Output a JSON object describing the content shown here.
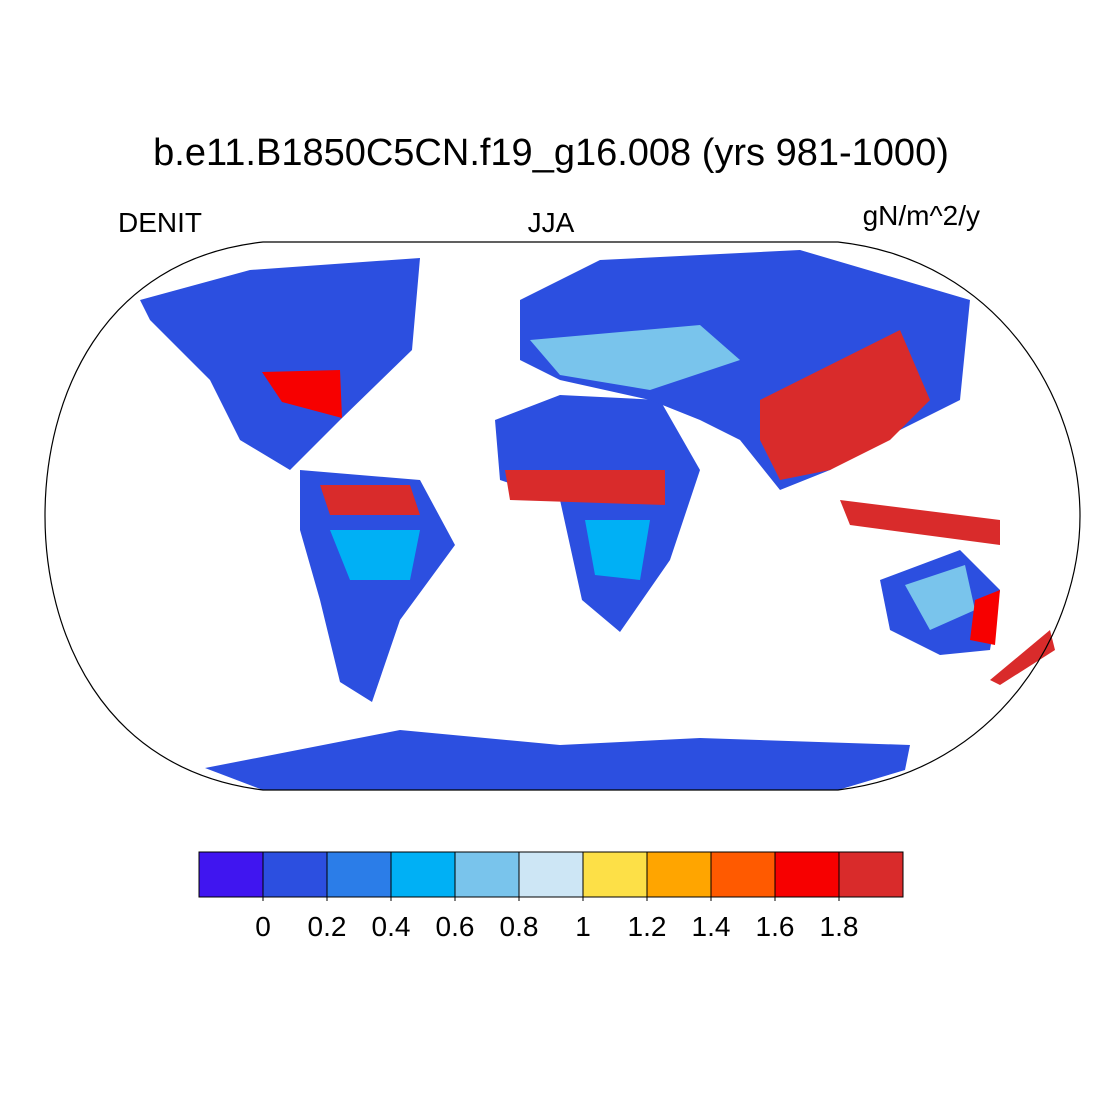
{
  "title": "b.e11.B1850C5CN.f19_g16.008 (yrs 981-1000)",
  "left_label": "DENIT",
  "center_label": "JJA",
  "right_label": "gN/m^2/y",
  "colorbar": {
    "colors": [
      "#4015f0",
      "#2c4fe0",
      "#2b7de8",
      "#00b0f5",
      "#79c4ec",
      "#cde6f5",
      "#fde047",
      "#ffa500",
      "#ff5a00",
      "#f70000",
      "#d92b2b"
    ],
    "ticks": [
      0,
      0.2,
      0.4,
      0.6,
      0.8,
      1,
      1.2,
      1.4,
      1.6,
      1.8
    ]
  }
}
